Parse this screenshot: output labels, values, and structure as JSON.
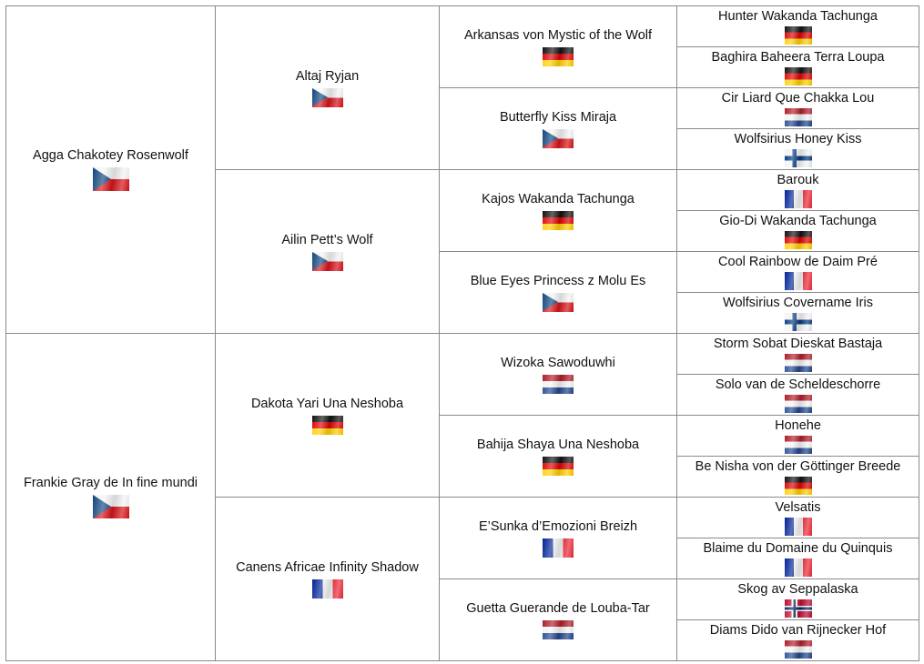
{
  "pedigree": {
    "g1": [
      {
        "name": "Agga Chakotey Rosenwolf",
        "flag": "cz"
      },
      {
        "name": "Frankie Gray de In fine mundi",
        "flag": "cz"
      }
    ],
    "g2": [
      {
        "name": "Altaj Ryjan",
        "flag": "cz"
      },
      {
        "name": "Ailin Pett’s Wolf",
        "flag": "cz"
      },
      {
        "name": "Dakota Yari Una Neshoba",
        "flag": "de"
      },
      {
        "name": "Canens Africae Infinity Shadow",
        "flag": "fr"
      }
    ],
    "g3": [
      {
        "name": "Arkansas von Mystic of the Wolf",
        "flag": "de"
      },
      {
        "name": "Butterfly Kiss Miraja",
        "flag": "cz"
      },
      {
        "name": "Kajos Wakanda Tachunga",
        "flag": "de"
      },
      {
        "name": "Blue Eyes Princess z Molu Es",
        "flag": "cz"
      },
      {
        "name": "Wizoka Sawoduwhi",
        "flag": "nl"
      },
      {
        "name": "Bahija Shaya Una Neshoba",
        "flag": "de"
      },
      {
        "name": "E’Sunka d’Emozioni Breizh",
        "flag": "fr"
      },
      {
        "name": "Guetta Guerande de Louba-Tar",
        "flag": "nl"
      }
    ],
    "g4": [
      {
        "name": "Hunter Wakanda Tachunga",
        "flag": "de"
      },
      {
        "name": "Baghira Baheera Terra Loupa",
        "flag": "de"
      },
      {
        "name": "Cir Liard Que Chakka Lou",
        "flag": "nl"
      },
      {
        "name": "Wolfsirius Honey Kiss",
        "flag": "fi"
      },
      {
        "name": "Barouk",
        "flag": "fr"
      },
      {
        "name": "Gio-Di Wakanda Tachunga",
        "flag": "de"
      },
      {
        "name": "Cool Rainbow de Daim Pré",
        "flag": "fr"
      },
      {
        "name": "Wolfsirius Covername Iris",
        "flag": "fi"
      },
      {
        "name": "Storm Sobat Dieskat Bastaja",
        "flag": "nl"
      },
      {
        "name": "Solo van de Scheldeschorre",
        "flag": "nl"
      },
      {
        "name": "Honehe",
        "flag": "nl"
      },
      {
        "name": "Be Nisha von der Göttinger Breede",
        "flag": "de"
      },
      {
        "name": "Velsatis",
        "flag": "fr"
      },
      {
        "name": "Blaime du Domaine du Quinquis",
        "flag": "fr"
      },
      {
        "name": "Skog av Seppalaska",
        "flag": "no"
      },
      {
        "name": "Diams Dido van Rijnecker Hof",
        "flag": "nl"
      }
    ]
  },
  "flags": {
    "cz": {
      "icon": "czech-flag-icon",
      "colors": [
        "#11457e",
        "#f4f4f4",
        "#d7141a"
      ]
    },
    "de": {
      "icon": "german-flag-icon",
      "colors": [
        "#111111",
        "#dd0000",
        "#ffce00"
      ]
    },
    "nl": {
      "icon": "dutch-flag-icon",
      "colors": [
        "#ae1c28",
        "#f4f4f4",
        "#21468b"
      ]
    },
    "fr": {
      "icon": "french-flag-icon",
      "colors": [
        "#002395",
        "#f4f4f4",
        "#ed2939"
      ]
    },
    "fi": {
      "icon": "finnish-flag-icon",
      "colors": [
        "#f4f4f4",
        "#003580"
      ]
    },
    "no": {
      "icon": "norwegian-flag-icon",
      "colors": [
        "#ba0c2f",
        "#ffffff",
        "#00205b"
      ]
    }
  }
}
